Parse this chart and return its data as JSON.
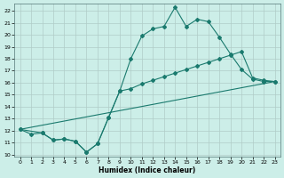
{
  "xlabel": "Humidex (Indice chaleur)",
  "background_color": "#cceee8",
  "grid_color": "#b0ccc8",
  "line_color": "#1a7a6e",
  "xlim": [
    -0.5,
    23.5
  ],
  "ylim": [
    9.8,
    22.6
  ],
  "yticks": [
    10,
    11,
    12,
    13,
    14,
    15,
    16,
    17,
    18,
    19,
    20,
    21,
    22
  ],
  "xticks": [
    0,
    1,
    2,
    3,
    4,
    5,
    6,
    7,
    8,
    9,
    10,
    11,
    12,
    13,
    14,
    15,
    16,
    17,
    18,
    19,
    20,
    21,
    22,
    23
  ],
  "line1_x": [
    0,
    1,
    2,
    3,
    4,
    5,
    6,
    7,
    8,
    9,
    10,
    11,
    12,
    13,
    14,
    15,
    16,
    17,
    18,
    19,
    20,
    21,
    22,
    23
  ],
  "line1_y": [
    12.1,
    11.7,
    11.8,
    11.2,
    11.3,
    11.1,
    10.2,
    10.9,
    13.1,
    15.3,
    18.0,
    19.9,
    20.5,
    20.7,
    22.3,
    20.7,
    21.3,
    21.1,
    19.8,
    18.4,
    17.1,
    16.3,
    16.1,
    16.1
  ],
  "line2_x": [
    0,
    2,
    3,
    4,
    5,
    6,
    7,
    8,
    9,
    10,
    11,
    12,
    13,
    14,
    15,
    16,
    17,
    18,
    19,
    20,
    21,
    22,
    23
  ],
  "line2_y": [
    12.1,
    11.8,
    11.2,
    11.3,
    11.1,
    10.2,
    10.9,
    13.1,
    15.3,
    15.5,
    15.9,
    16.2,
    16.5,
    16.8,
    17.1,
    17.4,
    17.7,
    18.0,
    18.3,
    18.6,
    16.4,
    16.2,
    16.1
  ],
  "line3_x": [
    0,
    23
  ],
  "line3_y": [
    12.1,
    16.1
  ],
  "marker": "D",
  "markersize": 2.0
}
